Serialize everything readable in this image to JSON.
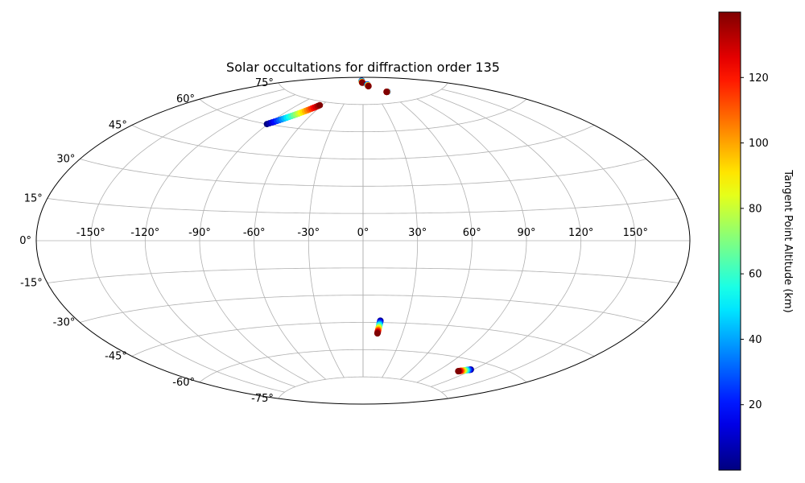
{
  "chart_data": {
    "type": "scatter",
    "projection": "aitoff",
    "title": "Solar occultations for diffraction order 135",
    "x_ticks": [
      "-150°",
      "-120°",
      "-90°",
      "-60°",
      "-30°",
      "0°",
      "30°",
      "60°",
      "90°",
      "120°",
      "150°"
    ],
    "x_tick_values": [
      -150,
      -120,
      -90,
      -60,
      -30,
      0,
      30,
      60,
      90,
      120,
      150
    ],
    "y_ticks": [
      "75°",
      "60°",
      "45°",
      "30°",
      "15°",
      "0°",
      "-15°",
      "-30°",
      "-45°",
      "-60°",
      "-75°"
    ],
    "y_tick_values": [
      75,
      60,
      45,
      30,
      15,
      0,
      -15,
      -30,
      -45,
      -60,
      -75
    ],
    "grid": true,
    "colorbar": {
      "label": "Tangent Point Altitude (km)",
      "colormap": "jet",
      "range": [
        0,
        140
      ],
      "ticks": [
        "20",
        "40",
        "60",
        "80",
        "100",
        "120"
      ],
      "tick_values": [
        20,
        40,
        60,
        80,
        100,
        120
      ],
      "position": "right"
    },
    "series": [
      {
        "lon_range": [
          -91,
          -63
        ],
        "lat_range": [
          60,
          73
        ],
        "alt_range": [
          0,
          140
        ]
      },
      {
        "lon_range": [
          -14,
          -5
        ],
        "lat_range": [
          88,
          87
        ],
        "alt_range": [
          0,
          140
        ]
      },
      {
        "lon_range": [
          22,
          23
        ],
        "lat_range": [
          86,
          85
        ],
        "alt_range": [
          0,
          140
        ]
      },
      {
        "lon_range": [
          62,
          60
        ],
        "lat_range": [
          81,
          81
        ],
        "alt_range": [
          0,
          140
        ]
      },
      {
        "lon_range": [
          12,
          11
        ],
        "lat_range": [
          -44,
          -51
        ],
        "alt_range": [
          0,
          140
        ]
      },
      {
        "lon_range": [
          118,
          110
        ],
        "lat_range": [
          -64,
          -66
        ],
        "alt_range": [
          0,
          140
        ]
      }
    ]
  }
}
